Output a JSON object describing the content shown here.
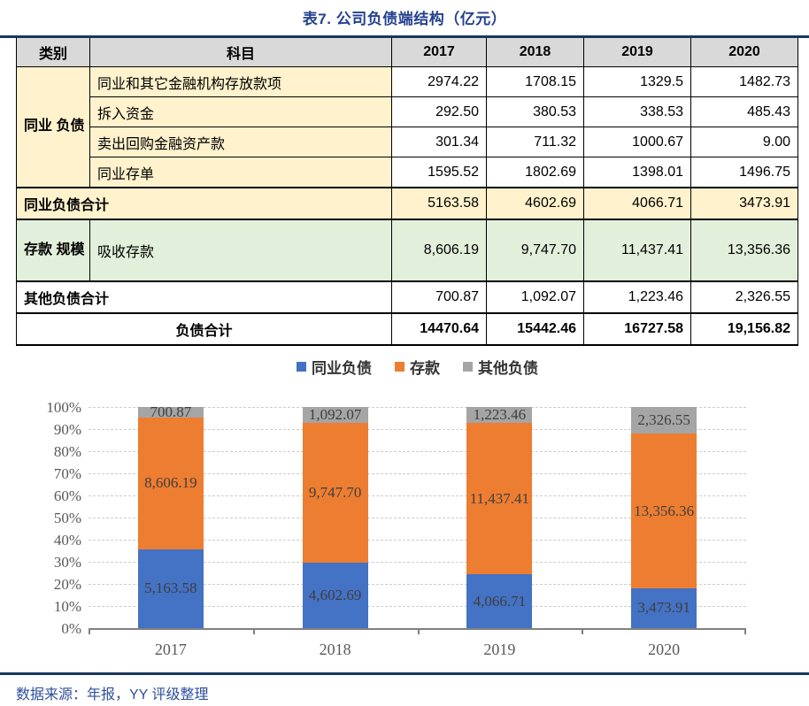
{
  "title": "表7. 公司负债端结构（亿元）",
  "source": "数据来源：年报，YY 评级整理",
  "colors": {
    "rule_navy": "#17375E",
    "title_blue": "#24418E",
    "source_blue": "#2D4F9C",
    "header_gray": "#D9D9D9",
    "cream": "#FFF2CC",
    "green": "#E2EFDA",
    "bar_blue": "#4472C4",
    "bar_orange": "#ED7D31",
    "bar_gray": "#A5A5A5"
  },
  "table": {
    "headers": [
      "类别",
      "科目",
      "2017",
      "2018",
      "2019",
      "2020"
    ],
    "interbank_category": "同业\n负债",
    "rows": [
      {
        "subject": "同业和其它金融机构存放款项",
        "values": [
          "2974.22",
          "1708.15",
          "1329.5",
          "1482.73"
        ]
      },
      {
        "subject": "拆入资金",
        "values": [
          "292.50",
          "380.53",
          "338.53",
          "485.43"
        ]
      },
      {
        "subject": "卖出回购金融资产款",
        "values": [
          "301.34",
          "711.32",
          "1000.67",
          "9.00"
        ]
      },
      {
        "subject": "同业存单",
        "values": [
          "1595.52",
          "1802.69",
          "1398.01",
          "1496.75"
        ]
      }
    ],
    "interbank_total": {
      "label": "同业负债合计",
      "values": [
        "5163.58",
        "4602.69",
        "4066.71",
        "3473.91"
      ]
    },
    "deposit": {
      "category": "存款\n规模",
      "subject": "吸收存款",
      "values": [
        "8,606.19",
        "9,747.70",
        "11,437.41",
        "13,356.36"
      ]
    },
    "other_total": {
      "label": "其他负债合计",
      "values": [
        "700.87",
        "1,092.07",
        "1,223.46",
        "2,326.55"
      ]
    },
    "grand_total": {
      "label": "负债合计",
      "values": [
        "14470.64",
        "15442.46",
        "16727.58",
        "19,156.82"
      ]
    }
  },
  "chart_data": {
    "type": "bar",
    "subtype": "stacked-100percent",
    "title": "",
    "xlabel": "",
    "ylabel": "",
    "categories": [
      "2017",
      "2018",
      "2019",
      "2020"
    ],
    "series": [
      {
        "name": "同业负债",
        "color": "#4472C4",
        "values": [
          5163.58,
          4602.69,
          4066.71,
          3473.91
        ],
        "labels": [
          "5,163.58",
          "4,602.69",
          "4,066.71",
          "3,473.91"
        ]
      },
      {
        "name": "存款",
        "color": "#ED7D31",
        "values": [
          8606.19,
          9747.7,
          11437.41,
          13356.36
        ],
        "labels": [
          "8,606.19",
          "9,747.70",
          "11,437.41",
          "13,356.36"
        ]
      },
      {
        "name": "其他负债",
        "color": "#A5A5A5",
        "values": [
          700.87,
          1092.07,
          1223.46,
          2326.55
        ],
        "labels": [
          "700.87",
          "1,092.07",
          "1,223.46",
          "2,326.55"
        ]
      }
    ],
    "y_ticks": [
      "100%",
      "90%",
      "80%",
      "70%",
      "60%",
      "50%",
      "40%",
      "30%",
      "20%",
      "10%",
      "0%"
    ],
    "ylim": [
      0,
      1
    ],
    "grid": "horizontal-dashed",
    "legend_position": "top-center"
  }
}
